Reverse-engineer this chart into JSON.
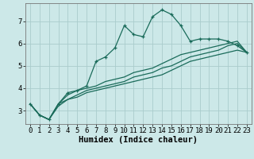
{
  "xlabel": "Humidex (Indice chaleur)",
  "background_color": "#cce8e8",
  "grid_color": "#aacccc",
  "line_color": "#1a6b5a",
  "x_values": [
    0,
    1,
    2,
    3,
    4,
    5,
    6,
    7,
    8,
    9,
    10,
    11,
    12,
    13,
    14,
    15,
    16,
    17,
    18,
    19,
    20,
    21,
    22,
    23
  ],
  "y_main": [
    3.3,
    2.8,
    2.6,
    3.3,
    3.8,
    3.9,
    4.1,
    5.2,
    5.4,
    5.8,
    6.8,
    6.4,
    6.3,
    7.2,
    7.5,
    7.3,
    6.8,
    6.1,
    6.2,
    6.2,
    6.2,
    6.1,
    5.9,
    5.6
  ],
  "y_line2": [
    3.3,
    2.8,
    2.6,
    3.3,
    3.5,
    3.6,
    3.8,
    3.9,
    4.0,
    4.1,
    4.2,
    4.3,
    4.4,
    4.5,
    4.6,
    4.8,
    5.0,
    5.2,
    5.3,
    5.4,
    5.5,
    5.6,
    5.7,
    5.6
  ],
  "y_line3": [
    3.3,
    2.8,
    2.6,
    3.2,
    3.5,
    3.7,
    3.9,
    4.0,
    4.1,
    4.2,
    4.3,
    4.5,
    4.6,
    4.7,
    4.9,
    5.0,
    5.2,
    5.4,
    5.5,
    5.6,
    5.7,
    5.9,
    6.0,
    5.6
  ],
  "y_line4": [
    3.3,
    2.8,
    2.6,
    3.3,
    3.7,
    3.9,
    4.0,
    4.1,
    4.3,
    4.4,
    4.5,
    4.7,
    4.8,
    4.9,
    5.1,
    5.3,
    5.5,
    5.6,
    5.7,
    5.8,
    5.9,
    6.0,
    6.1,
    5.6
  ],
  "ylim": [
    2.4,
    7.8
  ],
  "xlim": [
    -0.5,
    23.5
  ],
  "yticks": [
    3,
    4,
    5,
    6,
    7
  ],
  "xticks": [
    0,
    1,
    2,
    3,
    4,
    5,
    6,
    7,
    8,
    9,
    10,
    11,
    12,
    13,
    14,
    15,
    16,
    17,
    18,
    19,
    20,
    21,
    22,
    23
  ],
  "tick_fontsize": 6.5,
  "xlabel_fontsize": 7.5,
  "marker": "+"
}
